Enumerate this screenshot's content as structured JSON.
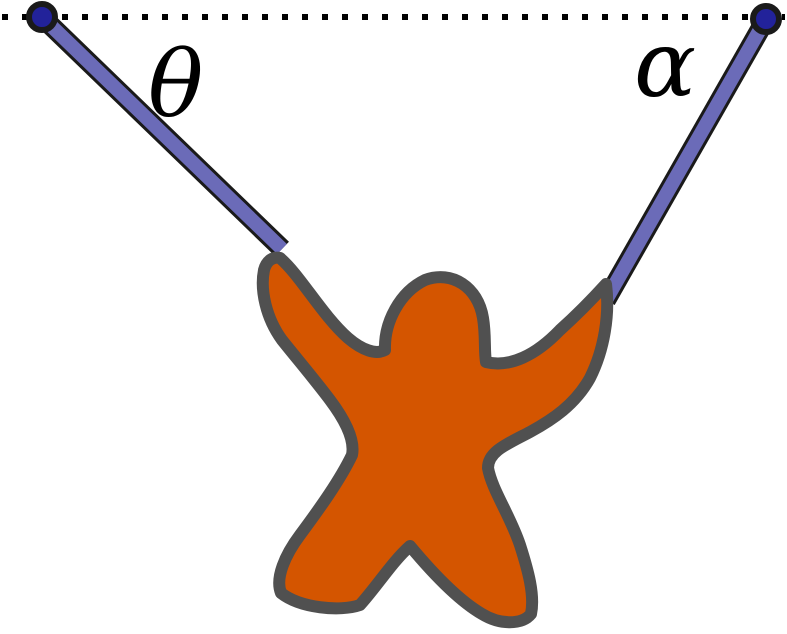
{
  "diagram": {
    "angle_left_label": "θ",
    "angle_right_label": "α",
    "colors": {
      "background": "#ffffff",
      "reference_line": "#000000",
      "rope_fill": "#6b6bb8",
      "rope_outline": "#1a1a1a",
      "pivot_fill": "#22229a",
      "pivot_outline": "#1a1a1a",
      "figure_fill": "#d45500",
      "figure_outline": "#505050"
    }
  }
}
